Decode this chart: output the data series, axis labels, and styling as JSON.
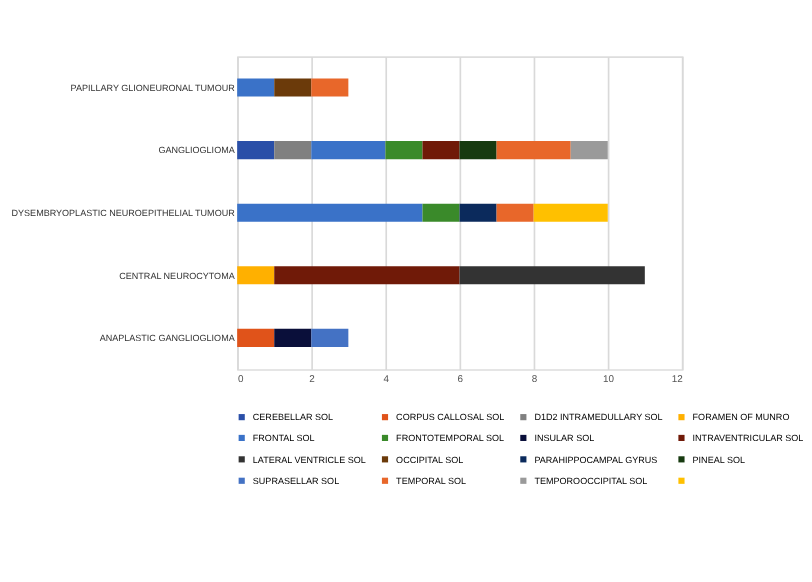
{
  "chart_data": {
    "type": "bar",
    "orientation": "horizontal",
    "stacked": true,
    "categories": [
      "PAPILLARY GLIONEURONAL TUMOUR",
      "GANGLIOGLIOMA",
      "DYSEMBRYOPLASTIC NEUROEPITHELIAL TUMOUR",
      "CENTRAL NEUROCYTOMA",
      "ANAPLASTIC GANGLIOGLIOMA"
    ],
    "series": [
      {
        "name": "CEREBELLAR SOL",
        "color": "#2a4fa8",
        "values": [
          null,
          1,
          null,
          null,
          null
        ]
      },
      {
        "name": "CORPUS CALLOSAL SOL",
        "color": "#e0531a",
        "values": [
          null,
          null,
          null,
          null,
          1
        ]
      },
      {
        "name": "D1D2 INTRAMEDULLARY SOL",
        "color": "#808080",
        "values": [
          null,
          1,
          null,
          null,
          null
        ]
      },
      {
        "name": "FORAMEN OF MUNRO",
        "color": "#ffb000",
        "values": [
          null,
          null,
          null,
          1,
          null
        ]
      },
      {
        "name": "FRONTAL SOL",
        "color": "#3a72c8",
        "values": [
          1,
          2,
          5,
          null,
          null
        ]
      },
      {
        "name": "FRONTOTEMPORAL SOL",
        "color": "#3a8a2a",
        "values": [
          null,
          1,
          1,
          null,
          null
        ]
      },
      {
        "name": "INSULAR SOL",
        "color": "#0a0f3a",
        "values": [
          null,
          null,
          null,
          null,
          1
        ]
      },
      {
        "name": "INTRAVENTRICULAR SOL",
        "color": "#701a08",
        "values": [
          null,
          1,
          null,
          5,
          null
        ]
      },
      {
        "name": "LATERAL VENTRICLE SOL",
        "color": "#333333",
        "values": [
          null,
          null,
          null,
          5,
          null
        ]
      },
      {
        "name": "OCCIPITAL SOL",
        "color": "#6b3a0a",
        "values": [
          1,
          null,
          null,
          null,
          null
        ]
      },
      {
        "name": "PARAHIPPOCAMPAL GYRUS",
        "color": "#0b2a5c",
        "values": [
          null,
          null,
          1,
          null,
          null
        ]
      },
      {
        "name": "PINEAL SOL",
        "color": "#173a10",
        "values": [
          null,
          1,
          null,
          null,
          null
        ]
      },
      {
        "name": "SUPRASELLAR SOL",
        "color": "#4472c4",
        "values": [
          null,
          null,
          null,
          null,
          1
        ]
      },
      {
        "name": "TEMPORAL SOL",
        "color": "#e8672a",
        "values": [
          1,
          2,
          1,
          null,
          null
        ]
      },
      {
        "name": "TEMPOROOCCIPITAL SOL",
        "color": "#9a9a9a",
        "values": [
          null,
          1,
          null,
          null,
          null
        ]
      },
      {
        "color": "#ffc000",
        "values": [
          null,
          null,
          2,
          null,
          null
        ]
      }
    ],
    "xlim": [
      0,
      12
    ],
    "xticks": [
      0,
      2,
      4,
      6,
      8,
      10,
      12
    ],
    "grid": "x",
    "legend": "bottom"
  }
}
